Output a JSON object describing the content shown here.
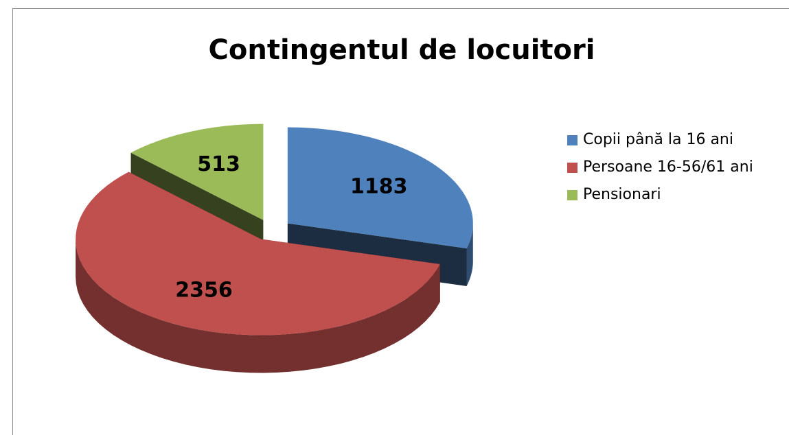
{
  "chart_data": {
    "type": "pie",
    "title": "Contingentul de locuitori",
    "categories": [
      "Copii până la 16 ani",
      "Persoane 16-56/61 ani",
      "Pensionari"
    ],
    "values": [
      1183,
      2356,
      513
    ],
    "colors": [
      "#4f81bd",
      "#c0504d",
      "#9bbb59"
    ],
    "legend": "right"
  }
}
